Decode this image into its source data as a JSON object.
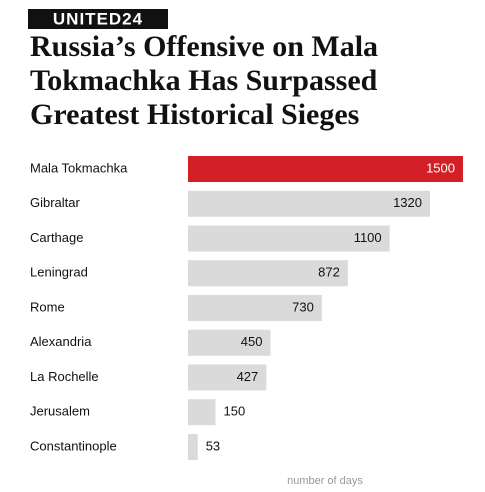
{
  "brand": "UNITED24",
  "chart_data": {
    "type": "bar",
    "orientation": "horizontal",
    "title": "Russia’s Offensive on Mala Tokmachka Has Surpassed Greatest Historical Sieges",
    "categories": [
      "Mala Tokmachka",
      "Gibraltar",
      "Carthage",
      "Leningrad",
      "Rome",
      "Alexandria",
      "La Rochelle",
      "Jerusalem",
      "Constantinople"
    ],
    "values": [
      1500,
      1320,
      1100,
      872,
      730,
      450,
      427,
      150,
      53
    ],
    "colors": [
      "#d32027",
      "#dadada",
      "#dadada",
      "#dadada",
      "#dadada",
      "#dadada",
      "#dadada",
      "#dadada",
      "#dadada"
    ],
    "x_label": "number of days",
    "xlim": [
      0,
      1500
    ]
  }
}
